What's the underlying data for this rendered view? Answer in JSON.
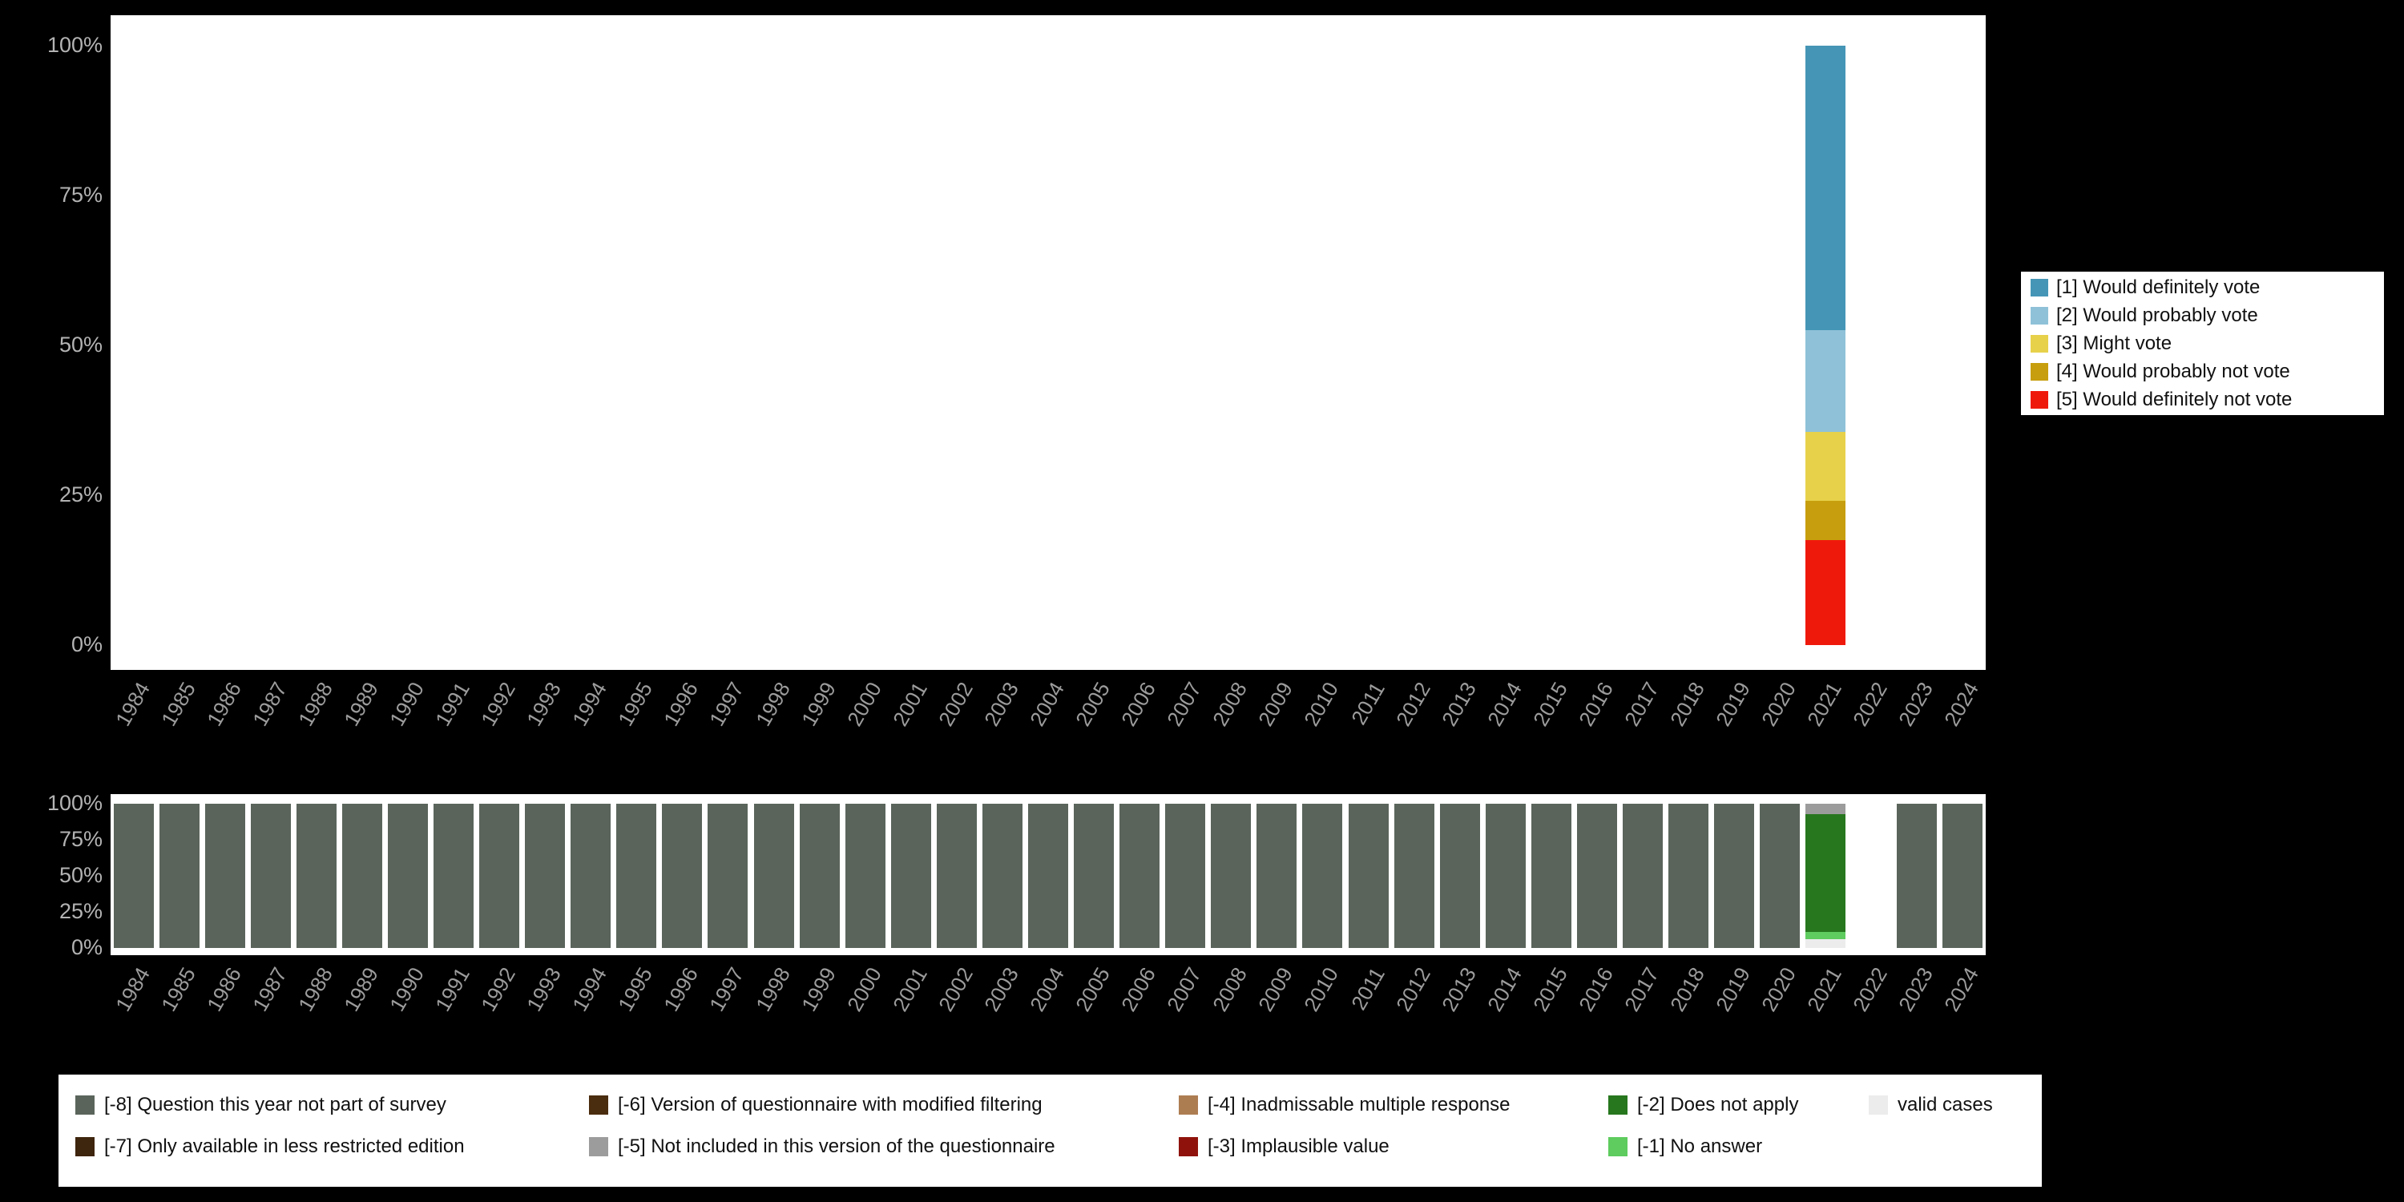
{
  "page": {
    "background": "#000000",
    "plot_background": "#ffffff"
  },
  "top_legend": {
    "items": [
      {
        "label": "[1] Would definitely vote",
        "color": "#4596b6"
      },
      {
        "label": "[2] Would probably vote",
        "color": "#8fc2d8"
      },
      {
        "label": "[3] Might vote",
        "color": "#e7d14b"
      },
      {
        "label": "[4] Would probably not vote",
        "color": "#c79e0d"
      },
      {
        "label": "[5] Would definitely not vote",
        "color": "#ef190b"
      }
    ]
  },
  "bottom_legend": {
    "items": [
      {
        "label": "[-8] Question this year not part of survey",
        "color": "#5a645b"
      },
      {
        "label": "[-6] Version of questionnaire with modified filtering",
        "color": "#4a2c0e"
      },
      {
        "label": "[-4] Inadmissable multiple response",
        "color": "#ad7d52"
      },
      {
        "label": "[-2] Does not apply",
        "color": "#27771e"
      },
      {
        "label": "valid cases",
        "color": "#ececec"
      },
      {
        "label": "[-7] Only available in less restricted edition",
        "color": "#3e250d"
      },
      {
        "label": "[-5] Not included in this version of the questionnaire",
        "color": "#9c9c9c"
      },
      {
        "label": "[-3] Implausible value",
        "color": "#8f130c"
      },
      {
        "label": "[-1] No answer",
        "color": "#5ecc5e"
      }
    ]
  },
  "chart_data": [
    {
      "id": "top",
      "type": "bar",
      "stacked": true,
      "title": "",
      "xlabel": "",
      "ylabel": "",
      "ylim": [
        0,
        100
      ],
      "grid": false,
      "legend_position": "right",
      "x_categories": [
        "1984",
        "1985",
        "1986",
        "1987",
        "1988",
        "1989",
        "1990",
        "1991",
        "1992",
        "1993",
        "1994",
        "1995",
        "1996",
        "1997",
        "1998",
        "1999",
        "2000",
        "2001",
        "2002",
        "2003",
        "2004",
        "2005",
        "2006",
        "2007",
        "2008",
        "2009",
        "2010",
        "2011",
        "2012",
        "2013",
        "2014",
        "2015",
        "2016",
        "2017",
        "2018",
        "2019",
        "2020",
        "2021",
        "2022",
        "2023",
        "2024"
      ],
      "y_ticks": [
        {
          "value": 100,
          "label": "100%"
        },
        {
          "value": 75,
          "label": "75%"
        },
        {
          "value": 50,
          "label": "50%"
        },
        {
          "value": 25,
          "label": "25%"
        },
        {
          "value": 0,
          "label": "0%"
        }
      ],
      "series": [
        {
          "name": "[1] Would definitely vote",
          "color": "#4596b6",
          "data": {
            "2021": 47.5
          }
        },
        {
          "name": "[2] Would probably vote",
          "color": "#8fc2d8",
          "data": {
            "2021": 17.0
          }
        },
        {
          "name": "[3] Might vote",
          "color": "#e7d14b",
          "data": {
            "2021": 11.5
          }
        },
        {
          "name": "[4] Would probably not vote",
          "color": "#c79e0d",
          "data": {
            "2021": 6.5
          }
        },
        {
          "name": "[5] Would definitely not vote",
          "color": "#ef190b",
          "data": {
            "2021": 17.5
          }
        }
      ]
    },
    {
      "id": "bottom",
      "type": "bar",
      "stacked": true,
      "title": "",
      "xlabel": "",
      "ylabel": "",
      "ylim": [
        0,
        100
      ],
      "grid": false,
      "legend_position": "bottom",
      "x_categories": [
        "1984",
        "1985",
        "1986",
        "1987",
        "1988",
        "1989",
        "1990",
        "1991",
        "1992",
        "1993",
        "1994",
        "1995",
        "1996",
        "1997",
        "1998",
        "1999",
        "2000",
        "2001",
        "2002",
        "2003",
        "2004",
        "2005",
        "2006",
        "2007",
        "2008",
        "2009",
        "2010",
        "2011",
        "2012",
        "2013",
        "2014",
        "2015",
        "2016",
        "2017",
        "2018",
        "2019",
        "2020",
        "2021",
        "2022",
        "2023",
        "2024"
      ],
      "y_ticks": [
        {
          "value": 100,
          "label": "100%"
        },
        {
          "value": 75,
          "label": "75%"
        },
        {
          "value": 50,
          "label": "50%"
        },
        {
          "value": 25,
          "label": "25%"
        },
        {
          "value": 0,
          "label": "0%"
        }
      ],
      "series": [
        {
          "name": "[-8] Question this year not part of survey",
          "color": "#5a645b",
          "data": {
            "1984": 100,
            "1985": 100,
            "1986": 100,
            "1987": 100,
            "1988": 100,
            "1989": 100,
            "1990": 100,
            "1991": 100,
            "1992": 100,
            "1993": 100,
            "1994": 100,
            "1995": 100,
            "1996": 100,
            "1997": 100,
            "1998": 100,
            "1999": 100,
            "2000": 100,
            "2001": 100,
            "2002": 100,
            "2003": 100,
            "2004": 100,
            "2005": 100,
            "2006": 100,
            "2007": 100,
            "2008": 100,
            "2009": 100,
            "2010": 100,
            "2011": 100,
            "2012": 100,
            "2013": 100,
            "2014": 100,
            "2015": 100,
            "2016": 100,
            "2017": 100,
            "2018": 100,
            "2019": 100,
            "2020": 100,
            "2023": 100,
            "2024": 100
          }
        },
        {
          "name": "[-5] Not included in this version of the questionnaire",
          "color": "#9c9c9c",
          "data": {
            "2021": 7
          }
        },
        {
          "name": "[-2] Does not apply",
          "color": "#27771e",
          "data": {
            "2021": 82
          }
        },
        {
          "name": "[-1] No answer",
          "color": "#5ecc5e",
          "data": {
            "2021": 5
          }
        },
        {
          "name": "valid cases",
          "color": "#ececec",
          "data": {
            "2021": 6
          }
        }
      ]
    }
  ]
}
